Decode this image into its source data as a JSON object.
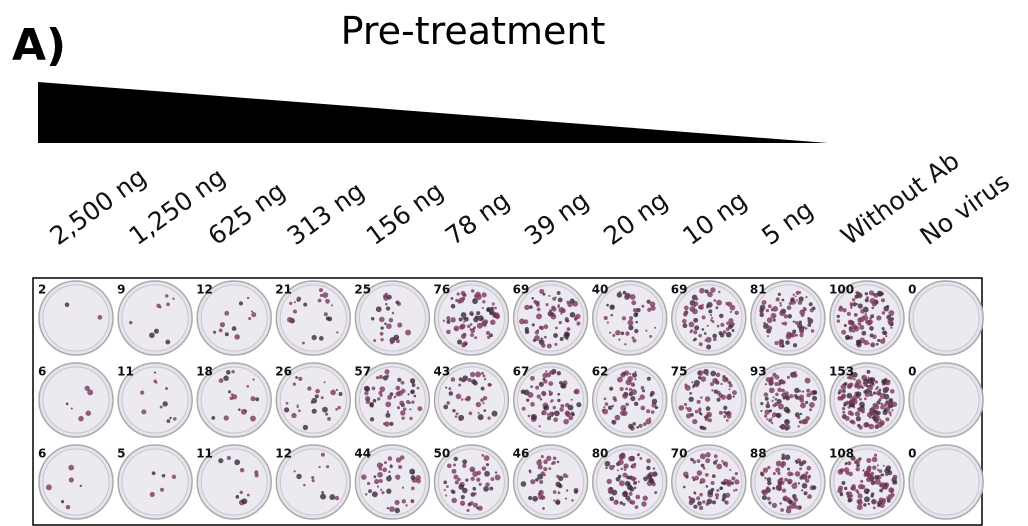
{
  "panel_label": "A)",
  "title": "Pre-treatment",
  "columns": [
    "2,500 ng",
    "1,250 ng",
    "625 ng",
    "313 ng",
    "156 ng",
    "78 ng",
    "39 ng",
    "20 ng",
    "10 ng",
    "5 ng",
    "Without Ab",
    "No virus"
  ],
  "plate": {
    "rows": [
      [
        2,
        9,
        12,
        21,
        25,
        76,
        69,
        40,
        69,
        81,
        100,
        0
      ],
      [
        6,
        11,
        18,
        26,
        57,
        43,
        67,
        62,
        75,
        93,
        153,
        0
      ],
      [
        6,
        5,
        11,
        12,
        44,
        50,
        46,
        80,
        70,
        88,
        108,
        0
      ]
    ]
  }
}
